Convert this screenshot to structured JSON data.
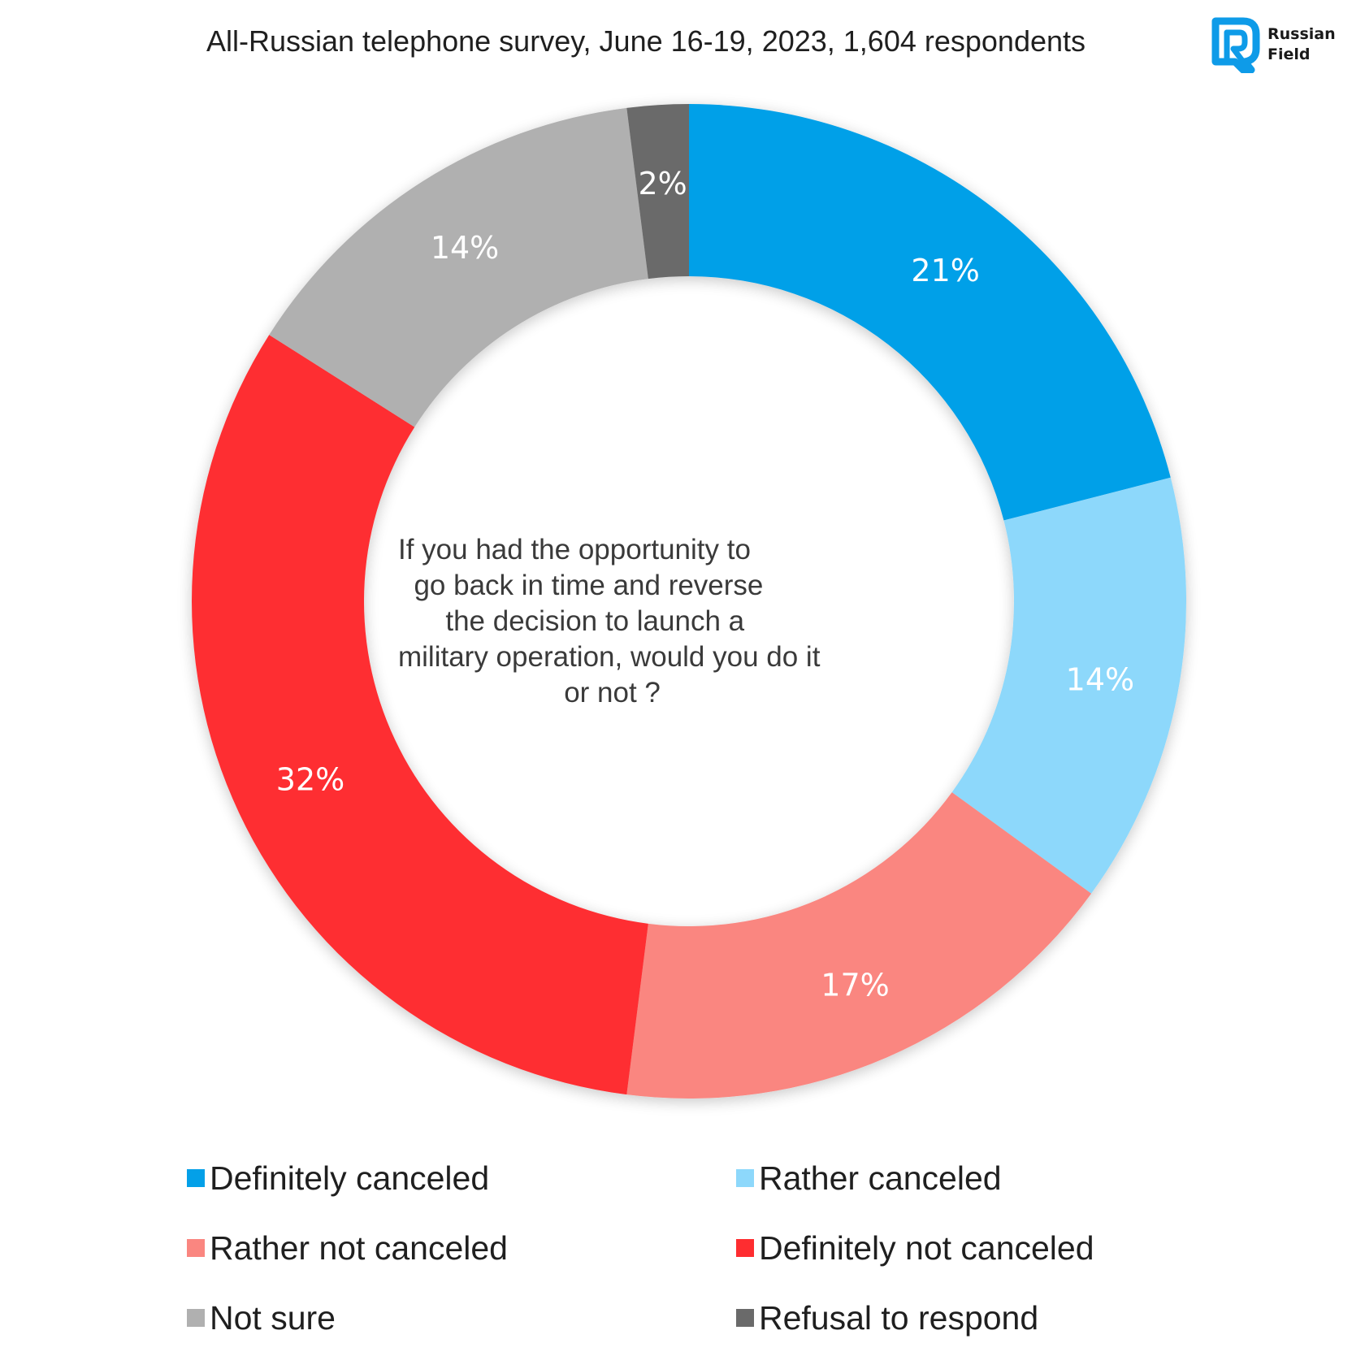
{
  "header": {
    "title": "All-Russian telephone survey, June 16-19, 2023, 1,604 respondents",
    "logo_text_line1": "Russian",
    "logo_text_line2": "Field"
  },
  "colors": {
    "definitely_canceled": "#03A0E8",
    "rather_canceled": "#8DD8FB",
    "rather_not_canceled": "#FA8680",
    "definitely_not_canceled": "#FE2D30",
    "not_sure": "#B0B0B0",
    "refusal": "#6A6A6A",
    "logo_blue": "#0E9BE8"
  },
  "center": {
    "question": "If you had the opportunity to\n  go back in time and reverse\n      the decision to launch a\nmilitary operation, would you do it\n                     or not ?"
  },
  "chart_data": {
    "type": "pie",
    "donut": true,
    "start_angle_deg": 0,
    "direction": "clockwise",
    "title": "All-Russian telephone survey, June 16-19, 2023, 1,604 respondents",
    "slices": [
      {
        "name": "Definitely canceled",
        "value": 21,
        "label": "21%",
        "color": "#03A0E8"
      },
      {
        "name": "Rather canceled",
        "value": 14,
        "label": "14%",
        "color": "#8DD8FB"
      },
      {
        "name": "Rather not canceled",
        "value": 17,
        "label": "17%",
        "color": "#FA8680"
      },
      {
        "name": "Definitely not canceled",
        "value": 32,
        "label": "32%",
        "color": "#FE2D30"
      },
      {
        "name": "Not sure",
        "value": 14,
        "label": "14%",
        "color": "#B0B0B0"
      },
      {
        "name": "Refusal to respond",
        "value": 2,
        "label": "2%",
        "color": "#6A6A6A"
      }
    ],
    "legend_placement": "bottom"
  },
  "legend": {
    "items": [
      {
        "label": "Definitely canceled",
        "color": "#03A0E8"
      },
      {
        "label": "Rather canceled",
        "color": "#8DD8FB"
      },
      {
        "label": "Rather not canceled",
        "color": "#FA8680"
      },
      {
        "label": "Definitely not canceled",
        "color": "#FE2D30"
      },
      {
        "label": "Not sure",
        "color": "#B0B0B0"
      },
      {
        "label": "Refusal to respond",
        "color": "#6A6A6A"
      }
    ]
  }
}
